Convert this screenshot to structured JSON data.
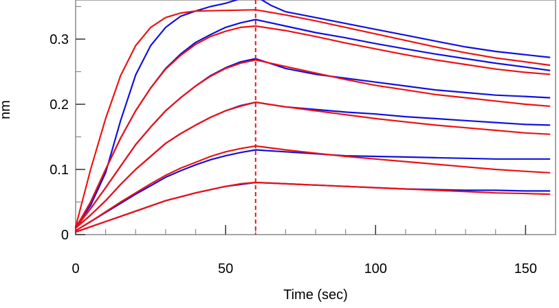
{
  "chart_data": {
    "type": "line",
    "title": "",
    "xlabel": "Time (sec)",
    "ylabel": "nm",
    "xlim": [
      0,
      160
    ],
    "ylim": [
      0,
      0.36
    ],
    "x_ticks": [
      0,
      50,
      100,
      150
    ],
    "x_tick_labels": [
      "0",
      "50",
      "100",
      "150"
    ],
    "y_ticks": [
      0,
      0.1,
      0.2,
      0.3
    ],
    "y_tick_labels": [
      "0",
      "0.1",
      "0.2",
      "0.3"
    ],
    "grid": false,
    "legend": "none",
    "colors": {
      "measured": "#1010e0",
      "fit": "#ee1111",
      "marker": "#ee1111",
      "axis": "#888888"
    },
    "association_end": 60,
    "series": [
      {
        "kind": "measured",
        "values": [
          [
            0,
            0.012
          ],
          [
            5,
            0.045
          ],
          [
            10,
            0.095
          ],
          [
            15,
            0.175
          ],
          [
            20,
            0.245
          ],
          [
            25,
            0.29
          ],
          [
            30,
            0.318
          ],
          [
            35,
            0.335
          ],
          [
            40,
            0.343
          ],
          [
            45,
            0.35
          ],
          [
            50,
            0.355
          ],
          [
            55,
            0.362
          ],
          [
            60,
            0.366
          ],
          [
            65,
            0.352
          ],
          [
            70,
            0.342
          ],
          [
            80,
            0.333
          ],
          [
            90,
            0.324
          ],
          [
            100,
            0.315
          ],
          [
            110,
            0.306
          ],
          [
            120,
            0.297
          ],
          [
            130,
            0.288
          ],
          [
            140,
            0.281
          ],
          [
            150,
            0.276
          ],
          [
            158,
            0.272
          ]
        ]
      },
      {
        "kind": "fit",
        "values": [
          [
            0,
            0.012
          ],
          [
            5,
            0.1
          ],
          [
            10,
            0.178
          ],
          [
            15,
            0.244
          ],
          [
            20,
            0.29
          ],
          [
            25,
            0.318
          ],
          [
            30,
            0.333
          ],
          [
            35,
            0.34
          ],
          [
            40,
            0.343
          ],
          [
            50,
            0.344
          ],
          [
            60,
            0.345
          ],
          [
            70,
            0.337
          ],
          [
            80,
            0.328
          ],
          [
            90,
            0.318
          ],
          [
            100,
            0.308
          ],
          [
            110,
            0.298
          ],
          [
            120,
            0.288
          ],
          [
            130,
            0.279
          ],
          [
            140,
            0.271
          ],
          [
            150,
            0.265
          ],
          [
            158,
            0.26
          ]
        ]
      },
      {
        "kind": "measured",
        "values": [
          [
            0,
            0.01
          ],
          [
            5,
            0.05
          ],
          [
            10,
            0.1
          ],
          [
            15,
            0.148
          ],
          [
            20,
            0.19
          ],
          [
            25,
            0.225
          ],
          [
            30,
            0.255
          ],
          [
            35,
            0.277
          ],
          [
            40,
            0.295
          ],
          [
            45,
            0.307
          ],
          [
            50,
            0.318
          ],
          [
            55,
            0.325
          ],
          [
            60,
            0.33
          ],
          [
            70,
            0.32
          ],
          [
            80,
            0.31
          ],
          [
            90,
            0.302
          ],
          [
            100,
            0.293
          ],
          [
            110,
            0.285
          ],
          [
            120,
            0.277
          ],
          [
            130,
            0.27
          ],
          [
            140,
            0.263
          ],
          [
            150,
            0.257
          ],
          [
            158,
            0.252
          ]
        ]
      },
      {
        "kind": "fit",
        "values": [
          [
            0,
            0.01
          ],
          [
            5,
            0.05
          ],
          [
            10,
            0.1
          ],
          [
            15,
            0.148
          ],
          [
            20,
            0.19
          ],
          [
            25,
            0.225
          ],
          [
            30,
            0.254
          ],
          [
            35,
            0.275
          ],
          [
            40,
            0.292
          ],
          [
            45,
            0.304
          ],
          [
            50,
            0.312
          ],
          [
            55,
            0.318
          ],
          [
            60,
            0.32
          ],
          [
            70,
            0.313
          ],
          [
            80,
            0.304
          ],
          [
            90,
            0.294
          ],
          [
            100,
            0.285
          ],
          [
            110,
            0.276
          ],
          [
            120,
            0.268
          ],
          [
            130,
            0.261
          ],
          [
            140,
            0.254
          ],
          [
            150,
            0.249
          ],
          [
            158,
            0.246
          ]
        ]
      },
      {
        "kind": "measured",
        "values": [
          [
            0,
            0.01
          ],
          [
            5,
            0.04
          ],
          [
            10,
            0.072
          ],
          [
            15,
            0.105
          ],
          [
            20,
            0.138
          ],
          [
            25,
            0.165
          ],
          [
            30,
            0.19
          ],
          [
            35,
            0.21
          ],
          [
            40,
            0.228
          ],
          [
            45,
            0.244
          ],
          [
            50,
            0.256
          ],
          [
            55,
            0.265
          ],
          [
            60,
            0.27
          ],
          [
            70,
            0.255
          ],
          [
            80,
            0.246
          ],
          [
            90,
            0.24
          ],
          [
            100,
            0.234
          ],
          [
            110,
            0.228
          ],
          [
            120,
            0.222
          ],
          [
            130,
            0.218
          ],
          [
            140,
            0.214
          ],
          [
            150,
            0.212
          ],
          [
            158,
            0.21
          ]
        ]
      },
      {
        "kind": "fit",
        "values": [
          [
            0,
            0.01
          ],
          [
            5,
            0.04
          ],
          [
            10,
            0.072
          ],
          [
            15,
            0.105
          ],
          [
            20,
            0.138
          ],
          [
            25,
            0.165
          ],
          [
            30,
            0.19
          ],
          [
            35,
            0.21
          ],
          [
            40,
            0.228
          ],
          [
            45,
            0.243
          ],
          [
            50,
            0.255
          ],
          [
            55,
            0.263
          ],
          [
            60,
            0.268
          ],
          [
            70,
            0.258
          ],
          [
            80,
            0.248
          ],
          [
            90,
            0.238
          ],
          [
            100,
            0.229
          ],
          [
            110,
            0.222
          ],
          [
            120,
            0.215
          ],
          [
            130,
            0.21
          ],
          [
            140,
            0.205
          ],
          [
            150,
            0.2
          ],
          [
            158,
            0.197
          ]
        ]
      },
      {
        "kind": "measured",
        "values": [
          [
            0,
            0.01
          ],
          [
            5,
            0.03
          ],
          [
            10,
            0.052
          ],
          [
            15,
            0.077
          ],
          [
            20,
            0.1
          ],
          [
            25,
            0.12
          ],
          [
            30,
            0.14
          ],
          [
            35,
            0.155
          ],
          [
            40,
            0.168
          ],
          [
            45,
            0.18
          ],
          [
            50,
            0.19
          ],
          [
            55,
            0.198
          ],
          [
            60,
            0.203
          ],
          [
            70,
            0.196
          ],
          [
            80,
            0.192
          ],
          [
            90,
            0.188
          ],
          [
            100,
            0.185
          ],
          [
            110,
            0.181
          ],
          [
            120,
            0.178
          ],
          [
            130,
            0.175
          ],
          [
            140,
            0.172
          ],
          [
            150,
            0.169
          ],
          [
            158,
            0.168
          ]
        ]
      },
      {
        "kind": "fit",
        "values": [
          [
            0,
            0.01
          ],
          [
            5,
            0.03
          ],
          [
            10,
            0.052
          ],
          [
            15,
            0.077
          ],
          [
            20,
            0.1
          ],
          [
            25,
            0.12
          ],
          [
            30,
            0.14
          ],
          [
            35,
            0.155
          ],
          [
            40,
            0.168
          ],
          [
            45,
            0.18
          ],
          [
            50,
            0.19
          ],
          [
            55,
            0.197
          ],
          [
            60,
            0.203
          ],
          [
            70,
            0.196
          ],
          [
            80,
            0.19
          ],
          [
            90,
            0.184
          ],
          [
            100,
            0.178
          ],
          [
            110,
            0.173
          ],
          [
            120,
            0.168
          ],
          [
            130,
            0.164
          ],
          [
            140,
            0.16
          ],
          [
            150,
            0.156
          ],
          [
            158,
            0.154
          ]
        ]
      },
      {
        "kind": "measured",
        "values": [
          [
            0,
            0.006
          ],
          [
            5,
            0.02
          ],
          [
            10,
            0.034
          ],
          [
            15,
            0.048
          ],
          [
            20,
            0.062
          ],
          [
            25,
            0.075
          ],
          [
            30,
            0.088
          ],
          [
            35,
            0.098
          ],
          [
            40,
            0.107
          ],
          [
            45,
            0.115
          ],
          [
            50,
            0.121
          ],
          [
            55,
            0.126
          ],
          [
            60,
            0.13
          ],
          [
            70,
            0.127
          ],
          [
            80,
            0.124
          ],
          [
            90,
            0.121
          ],
          [
            100,
            0.12
          ],
          [
            110,
            0.119
          ],
          [
            120,
            0.118
          ],
          [
            130,
            0.117
          ],
          [
            140,
            0.116
          ],
          [
            150,
            0.116
          ],
          [
            158,
            0.116
          ]
        ]
      },
      {
        "kind": "fit",
        "values": [
          [
            0,
            0.006
          ],
          [
            5,
            0.02
          ],
          [
            10,
            0.035
          ],
          [
            15,
            0.05
          ],
          [
            20,
            0.064
          ],
          [
            25,
            0.078
          ],
          [
            30,
            0.091
          ],
          [
            35,
            0.102
          ],
          [
            40,
            0.111
          ],
          [
            45,
            0.12
          ],
          [
            50,
            0.127
          ],
          [
            55,
            0.132
          ],
          [
            60,
            0.136
          ],
          [
            70,
            0.13
          ],
          [
            80,
            0.125
          ],
          [
            90,
            0.12
          ],
          [
            100,
            0.116
          ],
          [
            110,
            0.112
          ],
          [
            120,
            0.108
          ],
          [
            130,
            0.104
          ],
          [
            140,
            0.1
          ],
          [
            150,
            0.097
          ],
          [
            158,
            0.095
          ]
        ]
      },
      {
        "kind": "measured",
        "values": [
          [
            0,
            0.004
          ],
          [
            5,
            0.012
          ],
          [
            10,
            0.02
          ],
          [
            15,
            0.028
          ],
          [
            20,
            0.036
          ],
          [
            25,
            0.044
          ],
          [
            30,
            0.052
          ],
          [
            35,
            0.058
          ],
          [
            40,
            0.064
          ],
          [
            45,
            0.069
          ],
          [
            50,
            0.074
          ],
          [
            55,
            0.077
          ],
          [
            60,
            0.08
          ],
          [
            70,
            0.078
          ],
          [
            80,
            0.076
          ],
          [
            90,
            0.074
          ],
          [
            100,
            0.072
          ],
          [
            110,
            0.07
          ],
          [
            120,
            0.069
          ],
          [
            130,
            0.068
          ],
          [
            140,
            0.068
          ],
          [
            150,
            0.067
          ],
          [
            158,
            0.067
          ]
        ]
      },
      {
        "kind": "fit",
        "values": [
          [
            0,
            0.004
          ],
          [
            5,
            0.012
          ],
          [
            10,
            0.02
          ],
          [
            15,
            0.028
          ],
          [
            20,
            0.036
          ],
          [
            25,
            0.044
          ],
          [
            30,
            0.052
          ],
          [
            35,
            0.058
          ],
          [
            40,
            0.064
          ],
          [
            45,
            0.069
          ],
          [
            50,
            0.074
          ],
          [
            55,
            0.078
          ],
          [
            60,
            0.08
          ],
          [
            70,
            0.078
          ],
          [
            80,
            0.076
          ],
          [
            90,
            0.074
          ],
          [
            100,
            0.072
          ],
          [
            110,
            0.07
          ],
          [
            120,
            0.068
          ],
          [
            130,
            0.066
          ],
          [
            140,
            0.064
          ],
          [
            150,
            0.063
          ],
          [
            158,
            0.062
          ]
        ]
      }
    ]
  }
}
